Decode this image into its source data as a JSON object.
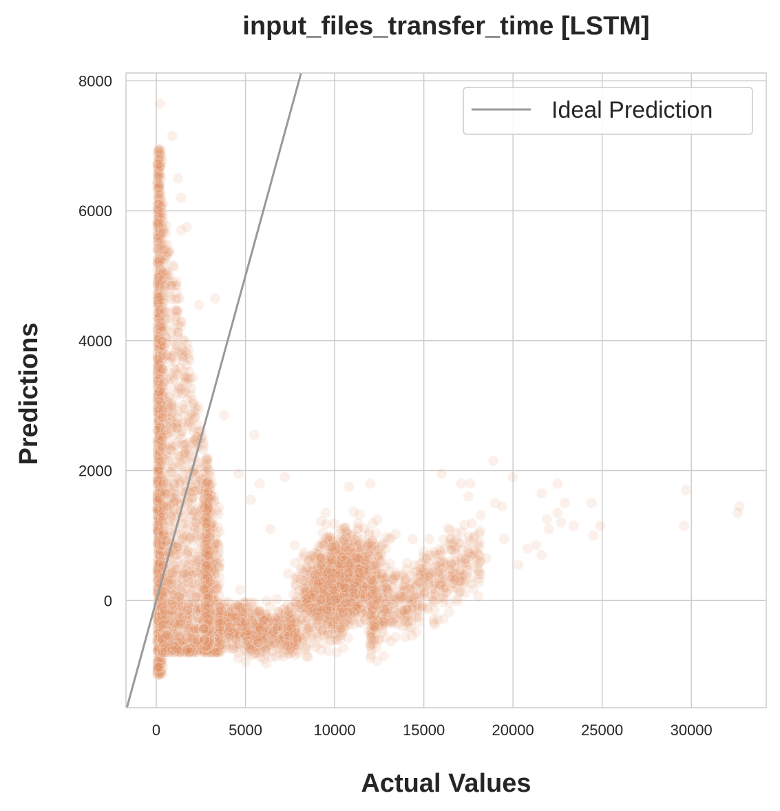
{
  "chart_data": {
    "type": "scatter",
    "title": "input_files_transfer_time [LSTM]",
    "xlabel": "Actual Values",
    "ylabel": "Predictions",
    "xlim": [
      -1700,
      34200
    ],
    "ylim": [
      -1650,
      8120
    ],
    "xticks": [
      0,
      5000,
      10000,
      15000,
      20000,
      25000,
      30000
    ],
    "yticks": [
      0,
      2000,
      4000,
      6000,
      8000
    ],
    "xtick_labels": [
      "0",
      "5000",
      "10000",
      "15000",
      "20000",
      "25000",
      "30000"
    ],
    "ytick_labels": [
      "0",
      "2000",
      "4000",
      "6000",
      "8000"
    ],
    "grid": true,
    "legend": {
      "placement": "top-right",
      "entries": [
        "Ideal Prediction"
      ]
    },
    "reference_line": {
      "name": "Ideal Prediction",
      "type": "y=x",
      "color": "#999999"
    },
    "point_color": "#e08b5e",
    "point_opacity": 0.13,
    "series": [
      {
        "kind": "scatter",
        "clusters": [
          {
            "x": [
              0,
              450
            ],
            "y": [
              -1200,
              7300
            ],
            "density": "very high"
          },
          {
            "x": [
              300,
              3500
            ],
            "y": [
              -800,
              4500
            ],
            "density": "high"
          },
          {
            "x": [
              3500,
              8000
            ],
            "y": [
              -800,
              800
            ],
            "density": "medium"
          },
          {
            "x": [
              8000,
              14000
            ],
            "y": [
              -700,
              1500
            ],
            "density": "high"
          },
          {
            "x": [
              14000,
              20000
            ],
            "y": [
              -100,
              1900
            ],
            "density": "low"
          }
        ],
        "points": [
          {
            "x": 200,
            "y": 7650
          },
          {
            "x": 900,
            "y": 7150
          },
          {
            "x": 1200,
            "y": 6500
          },
          {
            "x": 1400,
            "y": 6200
          },
          {
            "x": 1400,
            "y": 5700
          },
          {
            "x": 1700,
            "y": 5750
          },
          {
            "x": 2400,
            "y": 4550
          },
          {
            "x": 3300,
            "y": 4650
          },
          {
            "x": 3800,
            "y": 2850
          },
          {
            "x": 5500,
            "y": 2550
          },
          {
            "x": 7200,
            "y": 1900
          },
          {
            "x": 5800,
            "y": 1800
          },
          {
            "x": 4600,
            "y": 1950
          },
          {
            "x": 5300,
            "y": 1550
          },
          {
            "x": 10800,
            "y": 1750
          },
          {
            "x": 12000,
            "y": 1800
          },
          {
            "x": 16000,
            "y": 1950
          },
          {
            "x": 17100,
            "y": 1800
          },
          {
            "x": 17600,
            "y": 1800
          },
          {
            "x": 17500,
            "y": 1600
          },
          {
            "x": 18900,
            "y": 2150
          },
          {
            "x": 19000,
            "y": 1500
          },
          {
            "x": 19400,
            "y": 1450
          },
          {
            "x": 20000,
            "y": 1900
          },
          {
            "x": 19500,
            "y": 950
          },
          {
            "x": 20300,
            "y": 550
          },
          {
            "x": 20800,
            "y": 800
          },
          {
            "x": 21300,
            "y": 850
          },
          {
            "x": 21600,
            "y": 700
          },
          {
            "x": 21600,
            "y": 1650
          },
          {
            "x": 21900,
            "y": 1250
          },
          {
            "x": 22000,
            "y": 1100
          },
          {
            "x": 22500,
            "y": 1800
          },
          {
            "x": 22500,
            "y": 1350
          },
          {
            "x": 22700,
            "y": 1200
          },
          {
            "x": 22900,
            "y": 1500
          },
          {
            "x": 23400,
            "y": 1150
          },
          {
            "x": 24400,
            "y": 1500
          },
          {
            "x": 24500,
            "y": 1000
          },
          {
            "x": 24900,
            "y": 1150
          },
          {
            "x": 29600,
            "y": 1150
          },
          {
            "x": 29700,
            "y": 1700
          },
          {
            "x": 32600,
            "y": 1350
          },
          {
            "x": 32700,
            "y": 1450
          },
          {
            "x": 15600,
            "y": -150
          },
          {
            "x": 16500,
            "y": 950
          },
          {
            "x": 18500,
            "y": 650
          },
          {
            "x": 18100,
            "y": 450
          },
          {
            "x": 6400,
            "y": 1100
          },
          {
            "x": 9500,
            "y": 1350
          }
        ]
      }
    ]
  }
}
